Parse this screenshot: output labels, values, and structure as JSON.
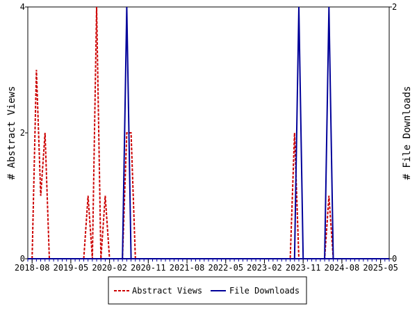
{
  "chart_data": {
    "type": "line",
    "x_tick_labels": [
      "2018-08",
      "2019-05",
      "2020-02",
      "2020-11",
      "2021-08",
      "2022-05",
      "2023-02",
      "2023-11",
      "2024-08",
      "2025-05"
    ],
    "y_left": {
      "label": "# Abstract Views",
      "ticks": [
        "0",
        "2",
        "4"
      ],
      "ylim": [
        0,
        4
      ]
    },
    "y_right": {
      "label": "# File Downloads",
      "ticks": [
        "0",
        "2"
      ],
      "ylim": [
        0,
        2
      ]
    },
    "grid": false,
    "legend_position": "bottom",
    "x_start": "2018-07",
    "series": [
      {
        "name": "Abstract Views",
        "axis": "left",
        "style": "dashed",
        "color": "#cc0000",
        "points": [
          [
            "2018-08",
            0
          ],
          [
            "2018-09",
            3
          ],
          [
            "2018-10",
            1
          ],
          [
            "2018-11",
            2
          ],
          [
            "2018-12",
            0
          ],
          [
            "2019-08",
            0
          ],
          [
            "2019-09",
            1
          ],
          [
            "2019-10",
            0
          ],
          [
            "2019-11",
            4
          ],
          [
            "2019-12",
            0
          ],
          [
            "2020-01",
            1
          ],
          [
            "2020-02",
            0
          ],
          [
            "2020-05",
            0
          ],
          [
            "2020-06",
            2
          ],
          [
            "2020-07",
            2
          ],
          [
            "2020-08",
            0
          ],
          [
            "2023-08",
            0
          ],
          [
            "2023-09",
            2
          ],
          [
            "2023-10",
            0
          ],
          [
            "2024-04",
            0
          ],
          [
            "2024-05",
            1
          ],
          [
            "2024-06",
            0
          ]
        ]
      },
      {
        "name": "File Downloads",
        "axis": "right",
        "style": "solid",
        "color": "#000099",
        "points": [
          [
            "2020-05",
            0
          ],
          [
            "2020-06",
            2
          ],
          [
            "2020-07",
            0
          ],
          [
            "2023-09",
            0
          ],
          [
            "2023-10",
            2
          ],
          [
            "2023-11",
            0
          ],
          [
            "2024-04",
            0
          ],
          [
            "2024-05",
            2
          ],
          [
            "2024-06",
            0
          ]
        ]
      }
    ]
  }
}
